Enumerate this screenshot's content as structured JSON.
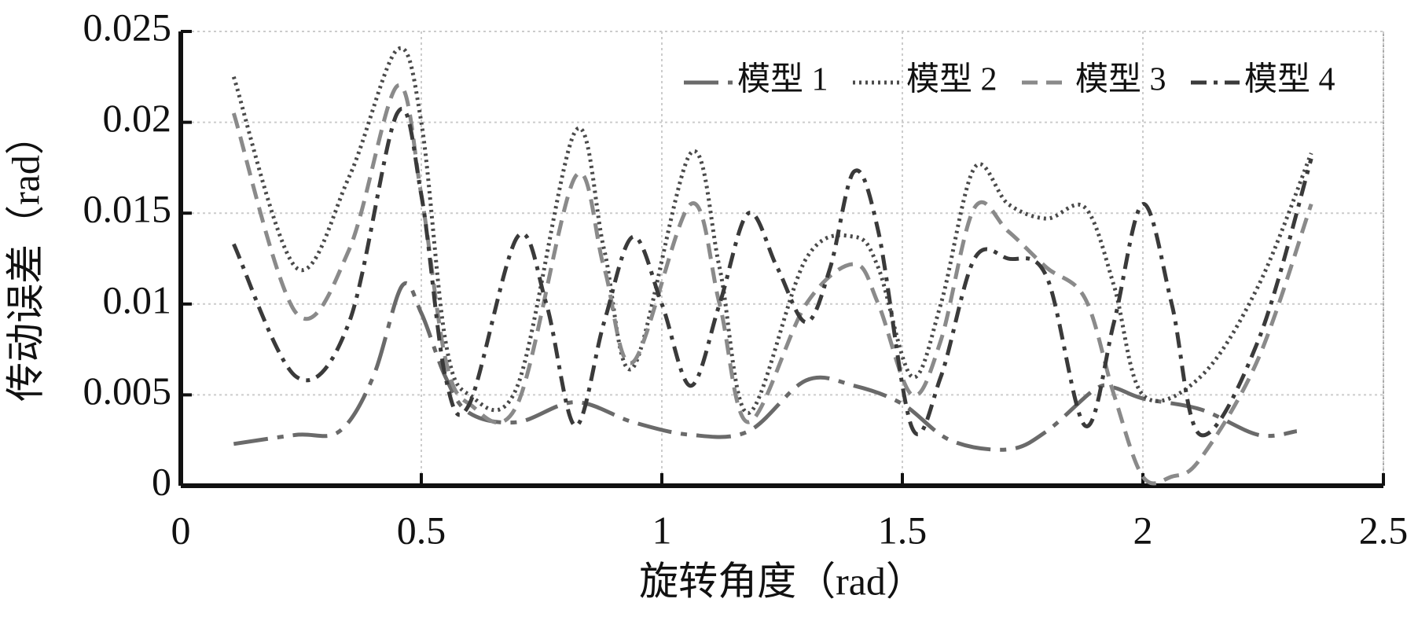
{
  "chart_data": {
    "type": "line",
    "x_label": "旋转角度（rad）",
    "y_label": "传动误差（rad）",
    "xlim": [
      0,
      2.5
    ],
    "xticks": [
      0,
      0.5,
      1,
      1.5,
      2,
      2.5
    ],
    "ylim": [
      0,
      0.025
    ],
    "yticks": [
      0,
      0.005,
      0.01,
      0.015,
      0.02,
      0.025
    ],
    "grid": true,
    "legend": "upper right",
    "series": [
      {
        "name": "模型 1",
        "color": "#6a6a6a",
        "dash": "44 12 8 12",
        "x": [
          0.11,
          0.24,
          0.33,
          0.4,
          0.46,
          0.5,
          0.55,
          0.6,
          0.7,
          0.82,
          0.94,
          1.06,
          1.18,
          1.3,
          1.4,
          1.5,
          1.6,
          1.72,
          1.8,
          1.9,
          1.94,
          2.0,
          2.12,
          2.24,
          2.32
        ],
        "values": [
          0.0023,
          0.0028,
          0.003,
          0.006,
          0.011,
          0.0095,
          0.006,
          0.004,
          0.0035,
          0.0046,
          0.0035,
          0.0028,
          0.003,
          0.0058,
          0.0055,
          0.0045,
          0.0025,
          0.002,
          0.003,
          0.0053,
          0.0054,
          0.0048,
          0.0042,
          0.0028,
          0.003
        ]
      },
      {
        "name": "模型 2",
        "color": "#4a4a4a",
        "dash": "3 5",
        "x": [
          0.11,
          0.24,
          0.35,
          0.45,
          0.5,
          0.55,
          0.6,
          0.7,
          0.82,
          0.88,
          0.94,
          1.06,
          1.12,
          1.18,
          1.3,
          1.4,
          1.45,
          1.52,
          1.58,
          1.65,
          1.72,
          1.8,
          1.88,
          1.94,
          2.0,
          2.12,
          2.24,
          2.35
        ],
        "values": [
          0.0225,
          0.012,
          0.017,
          0.024,
          0.02,
          0.008,
          0.005,
          0.0055,
          0.0195,
          0.013,
          0.0065,
          0.0183,
          0.012,
          0.004,
          0.0125,
          0.0137,
          0.012,
          0.006,
          0.01,
          0.0175,
          0.0155,
          0.0147,
          0.0153,
          0.011,
          0.005,
          0.006,
          0.011,
          0.0183
        ]
      },
      {
        "name": "模型 3",
        "color": "#8a8a8a",
        "dash": "20 11",
        "x": [
          0.11,
          0.24,
          0.35,
          0.45,
          0.5,
          0.55,
          0.6,
          0.7,
          0.82,
          0.88,
          0.94,
          1.06,
          1.12,
          1.18,
          1.3,
          1.4,
          1.45,
          1.52,
          1.58,
          1.65,
          1.72,
          1.8,
          1.88,
          1.94,
          2.0,
          2.06,
          2.12,
          2.24,
          2.35
        ],
        "values": [
          0.0205,
          0.0095,
          0.013,
          0.022,
          0.016,
          0.007,
          0.0045,
          0.0045,
          0.017,
          0.012,
          0.0068,
          0.0155,
          0.01,
          0.0035,
          0.01,
          0.0122,
          0.01,
          0.005,
          0.008,
          0.0153,
          0.014,
          0.012,
          0.0103,
          0.005,
          0.0005,
          0.0005,
          0.0015,
          0.007,
          0.0155
        ]
      },
      {
        "name": "模型 4",
        "color": "#3a3a3a",
        "dash": "20 9 5 9",
        "x": [
          0.11,
          0.24,
          0.35,
          0.45,
          0.5,
          0.55,
          0.6,
          0.7,
          0.76,
          0.82,
          0.88,
          0.94,
          1.0,
          1.06,
          1.12,
          1.18,
          1.24,
          1.3,
          1.35,
          1.4,
          1.45,
          1.52,
          1.58,
          1.65,
          1.72,
          1.8,
          1.88,
          1.94,
          2.0,
          2.06,
          2.12,
          2.24,
          2.35
        ],
        "values": [
          0.0133,
          0.006,
          0.009,
          0.0205,
          0.016,
          0.006,
          0.0045,
          0.0137,
          0.01,
          0.0033,
          0.009,
          0.0137,
          0.01,
          0.0055,
          0.01,
          0.015,
          0.012,
          0.009,
          0.012,
          0.0173,
          0.014,
          0.0032,
          0.006,
          0.0125,
          0.0125,
          0.0115,
          0.0033,
          0.009,
          0.0155,
          0.01,
          0.0028,
          0.008,
          0.018
        ]
      }
    ]
  }
}
